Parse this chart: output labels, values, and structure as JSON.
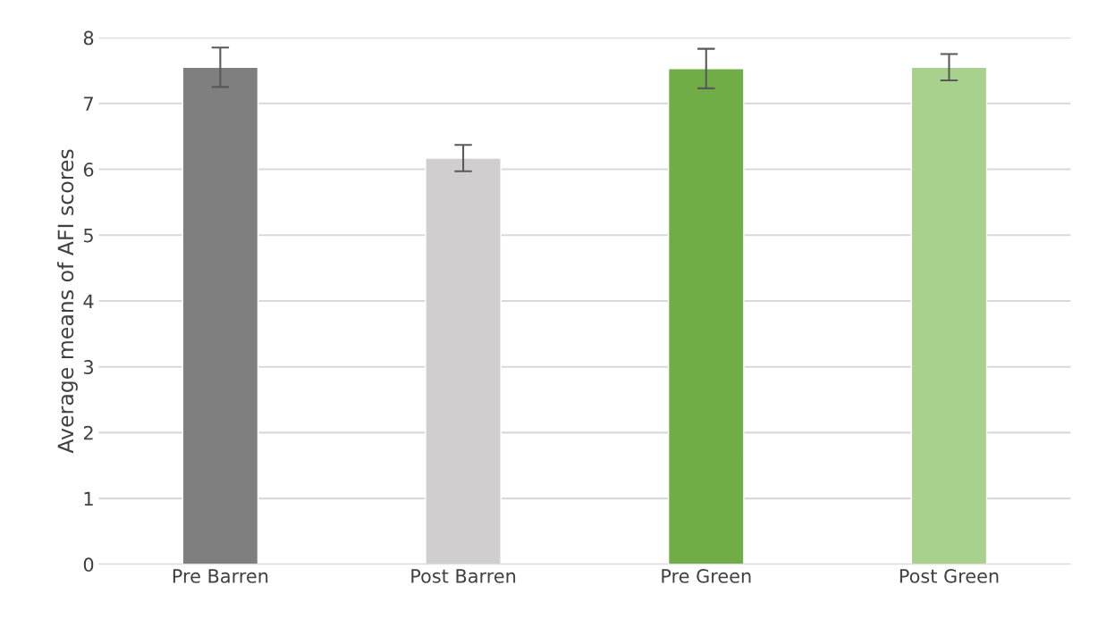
{
  "chart_data": {
    "type": "bar",
    "ylabel": "Average means of AFI scores",
    "categories": [
      "Pre Barren",
      "Post Barren",
      "Pre Green",
      "Post Green"
    ],
    "values": [
      7.55,
      6.17,
      7.53,
      7.55
    ],
    "errors": [
      0.3,
      0.2,
      0.3,
      0.2
    ],
    "colors": [
      "#7f7f7f",
      "#d0cece",
      "#70ad47",
      "#a9d18e"
    ],
    "ylim": [
      0,
      8
    ],
    "yticks": [
      0,
      1,
      2,
      3,
      4,
      5,
      6,
      7,
      8
    ],
    "grid": "y",
    "legend": false
  }
}
